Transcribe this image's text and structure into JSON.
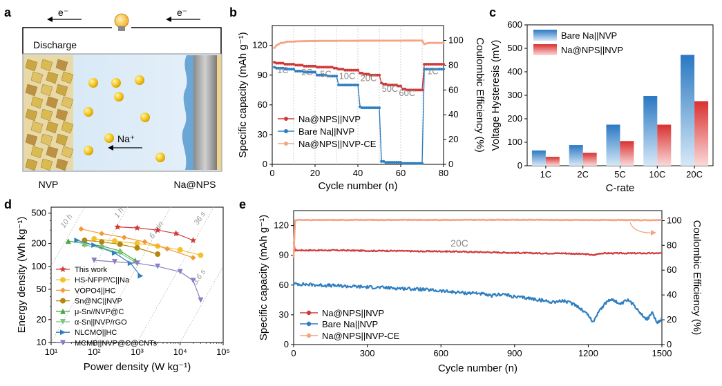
{
  "panel_labels": [
    "a",
    "b",
    "c",
    "d",
    "e"
  ],
  "panel_a": {
    "electron_left": "e⁻",
    "electron_right": "e⁻",
    "discharge_label": "Discharge",
    "ion_label": "Na⁺",
    "left_electrode_label": "NVP",
    "right_electrode_label": "Na@NPS",
    "icons": [
      "light-bulb-icon",
      "crystal-structure-icon",
      "sodium-ion-icon"
    ]
  },
  "chart_data": [
    {
      "panel": "b",
      "type": "line",
      "xlabel": "Cycle number (n)",
      "ylabel": "Specific capacity (mAh g⁻¹)",
      "y2label": "Coulombic Efficiency (%)",
      "xlim": [
        0,
        80
      ],
      "ylim": [
        0,
        140
      ],
      "y2lim": [
        0,
        112
      ],
      "xticks": [
        0,
        20,
        40,
        60,
        80
      ],
      "yticks": [
        0,
        30,
        60,
        90,
        120
      ],
      "y2ticks": [
        0,
        20,
        40,
        60,
        80,
        100
      ],
      "rate_labels": [
        "1C",
        "2C",
        "5C",
        "10C",
        "20C",
        "50C",
        "60C",
        "1C"
      ],
      "legend": [
        "Na@NPS||NVP",
        "Bare Na||NVP",
        "Na@NPS||NVP-CE"
      ],
      "series": [
        {
          "name": "Na@NPS||NVP",
          "color": "#d03a3a",
          "axis": "left",
          "x": [
            1,
            2,
            3,
            4,
            5,
            6,
            7,
            8,
            9,
            10,
            11,
            12,
            13,
            14,
            15,
            16,
            17,
            18,
            19,
            20,
            21,
            22,
            23,
            24,
            25,
            26,
            27,
            28,
            29,
            30,
            31,
            32,
            33,
            34,
            35,
            36,
            37,
            38,
            39,
            40,
            41,
            42,
            43,
            44,
            45,
            46,
            47,
            48,
            49,
            50,
            51,
            52,
            53,
            54,
            55,
            56,
            57,
            58,
            59,
            60,
            61,
            62,
            63,
            64,
            65,
            66,
            67,
            68,
            69,
            70,
            71,
            72,
            73,
            74,
            75,
            76,
            77,
            78,
            79,
            80
          ],
          "y": [
            103,
            102,
            102,
            102,
            102,
            101,
            101,
            101,
            101,
            101,
            100,
            100,
            100,
            100,
            99,
            99,
            99,
            99,
            99,
            99,
            98,
            98,
            98,
            98,
            98,
            98,
            98,
            98,
            97,
            97,
            96,
            96,
            96,
            95,
            95,
            95,
            95,
            95,
            95,
            95,
            92,
            92,
            91,
            91,
            91,
            90,
            90,
            90,
            90,
            90,
            82,
            81,
            81,
            80,
            80,
            80,
            80,
            80,
            79,
            79,
            76,
            76,
            75,
            75,
            75,
            75,
            75,
            75,
            75,
            75,
            101,
            101,
            101,
            101,
            101,
            101,
            101,
            101,
            101,
            101
          ]
        },
        {
          "name": "Bare Na||NVP",
          "color": "#2f7fc0",
          "axis": "left",
          "x": [
            1,
            2,
            3,
            4,
            5,
            6,
            7,
            8,
            9,
            10,
            11,
            12,
            13,
            14,
            15,
            16,
            17,
            18,
            19,
            20,
            21,
            22,
            23,
            24,
            25,
            26,
            27,
            28,
            29,
            30,
            31,
            32,
            33,
            34,
            35,
            36,
            37,
            38,
            39,
            40,
            41,
            42,
            43,
            44,
            45,
            46,
            47,
            48,
            49,
            50,
            51,
            52,
            53,
            54,
            55,
            56,
            57,
            58,
            59,
            60,
            61,
            62,
            63,
            64,
            65,
            66,
            67,
            68,
            69,
            70,
            71,
            72,
            73,
            74,
            75,
            76,
            77,
            78,
            79,
            80
          ],
          "y": [
            98,
            97,
            97,
            97,
            97,
            96,
            96,
            96,
            96,
            96,
            94,
            94,
            94,
            94,
            93,
            93,
            93,
            93,
            93,
            93,
            90,
            90,
            90,
            90,
            90,
            89,
            89,
            89,
            89,
            89,
            80,
            80,
            80,
            80,
            80,
            80,
            80,
            80,
            80,
            80,
            58,
            57,
            57,
            57,
            57,
            57,
            57,
            57,
            57,
            57,
            3,
            3,
            2,
            2,
            2,
            2,
            2,
            2,
            2,
            2,
            1,
            1,
            1,
            1,
            1,
            1,
            1,
            1,
            1,
            1,
            96,
            96,
            96,
            96,
            96,
            96,
            96,
            96,
            96,
            96
          ]
        },
        {
          "name": "Na@NPS||NVP-CE",
          "color": "#f4a582",
          "axis": "right",
          "x": [
            1,
            2,
            3,
            4,
            5,
            6,
            7,
            8,
            9,
            10,
            11,
            12,
            13,
            14,
            15,
            16,
            17,
            18,
            19,
            20,
            21,
            22,
            23,
            24,
            25,
            26,
            27,
            28,
            29,
            30,
            31,
            32,
            33,
            34,
            35,
            36,
            37,
            38,
            39,
            40,
            41,
            42,
            43,
            44,
            45,
            46,
            47,
            48,
            49,
            50,
            51,
            52,
            53,
            54,
            55,
            56,
            57,
            58,
            59,
            60,
            61,
            62,
            63,
            64,
            65,
            66,
            67,
            68,
            69,
            70,
            71,
            72,
            73,
            74,
            75,
            76,
            77,
            78,
            79,
            80
          ],
          "y": [
            94,
            96,
            97,
            98,
            98,
            98.5,
            99,
            99,
            99,
            99,
            99.2,
            99.3,
            99.3,
            99.4,
            99.4,
            99.4,
            99.5,
            99.5,
            99.5,
            99.5,
            99.5,
            99.6,
            99.6,
            99.6,
            99.6,
            99.6,
            99.6,
            99.6,
            99.6,
            99.6,
            99.7,
            99.7,
            99.7,
            99.7,
            99.7,
            99.7,
            99.7,
            99.7,
            99.7,
            99.7,
            99.8,
            99.8,
            99.8,
            99.8,
            99.8,
            99.8,
            99.8,
            99.8,
            99.8,
            99.8,
            99.8,
            99.8,
            99.8,
            99.8,
            99.8,
            99.8,
            99.8,
            99.8,
            99.8,
            99.8,
            99.9,
            99.9,
            99.9,
            99.9,
            99.9,
            99.9,
            99.9,
            99.9,
            99.9,
            99.9,
            97,
            97.5,
            98,
            98,
            98,
            98,
            98,
            98,
            98,
            98
          ]
        }
      ]
    },
    {
      "panel": "c",
      "type": "bar",
      "xlabel": "C-rate",
      "ylabel": "Voltage Hysteresis (mV)",
      "ylim": [
        0,
        600
      ],
      "yticks": [
        0,
        100,
        200,
        300,
        400,
        500,
        600
      ],
      "categories": [
        "1C",
        "2C",
        "5C",
        "10C",
        "20C"
      ],
      "series": [
        {
          "name": "Bare Na||NVP",
          "color": "#2f7fc0",
          "values": [
            65,
            88,
            175,
            297,
            472
          ]
        },
        {
          "name": "Na@NPS||NVP",
          "color": "#d93838",
          "values": [
            38,
            55,
            105,
            175,
            275
          ]
        }
      ]
    },
    {
      "panel": "d",
      "type": "line",
      "xlabel": "Power density (W kg⁻¹)",
      "ylabel": "Energy density (Wh kg⁻¹)",
      "xscale": "log",
      "yscale": "log",
      "xlim": [
        10,
        100000
      ],
      "ylim": [
        10,
        600
      ],
      "xtick_labels": [
        "10¹",
        "10²",
        "10³",
        "10⁴",
        "10⁵"
      ],
      "ytick_values": [
        10,
        20,
        50,
        100,
        200,
        500
      ],
      "time_lines": [
        "10 h",
        "1 h",
        "6 min",
        "36 s",
        "3.6 s"
      ],
      "series": [
        {
          "name": "This work",
          "color": "#d03a3a",
          "marker": "star",
          "x": [
            350,
            1000,
            3000,
            8000,
            20000
          ],
          "y": [
            330,
            320,
            300,
            270,
            220
          ]
        },
        {
          "name": "HS-NFPP/C||Na",
          "color": "#f2c12e",
          "marker": "circle",
          "x": [
            100,
            300,
            1000,
            3000,
            10000,
            30000
          ],
          "y": [
            230,
            215,
            200,
            185,
            165,
            140
          ]
        },
        {
          "name": "VOPO4||HC",
          "color": "#f29a3b",
          "marker": "diamond",
          "x": [
            50,
            150,
            500,
            1500,
            5000,
            20000
          ],
          "y": [
            310,
            270,
            240,
            210,
            170,
            130
          ]
        },
        {
          "name": "Sn@NC||NVP",
          "color": "#b8860b",
          "marker": "circle",
          "x": [
            60,
            150,
            400,
            1000,
            3000
          ],
          "y": [
            220,
            210,
            195,
            175,
            145
          ]
        },
        {
          "name": "μ-Sn//NVP@C",
          "color": "#4aa84a",
          "marker": "triangle-up",
          "x": [
            25,
            60,
            150,
            400,
            900
          ],
          "y": [
            215,
            200,
            185,
            160,
            120
          ]
        },
        {
          "name": "α-Sn||NVP/rGO",
          "color": "#7ac67a",
          "marker": "triangle-down",
          "x": [
            60,
            150,
            400,
            1000
          ],
          "y": [
            190,
            175,
            150,
            110
          ]
        },
        {
          "name": "NLCMO||HC",
          "color": "#2f7fc0",
          "marker": "triangle-right",
          "x": [
            40,
            100,
            300,
            700,
            1200
          ],
          "y": [
            220,
            190,
            150,
            110,
            75
          ]
        },
        {
          "name": "MCMB||NVP@C@CNTs",
          "color": "#8a7fc4",
          "marker": "triangle-down",
          "x": [
            100,
            300,
            1000,
            3000,
            10000,
            20000,
            30000
          ],
          "y": [
            120,
            115,
            110,
            100,
            85,
            65,
            36
          ]
        }
      ]
    },
    {
      "panel": "e",
      "type": "line",
      "xlabel": "Cycle number (n)",
      "ylabel": "Specific capacity (mAh g⁻¹)",
      "y2label": "Coulombic Efficiency (%)",
      "xlim": [
        0,
        1500
      ],
      "ylim": [
        0,
        135
      ],
      "y2lim": [
        0,
        108
      ],
      "xticks": [
        0,
        300,
        600,
        900,
        1200,
        1500
      ],
      "yticks": [
        0,
        30,
        60,
        90,
        120
      ],
      "y2ticks": [
        0,
        20,
        40,
        60,
        80,
        100
      ],
      "annotation": "20C",
      "legend": [
        "Na@NPS||NVP",
        "Bare Na||NVP",
        "Na@NPS||NVP-CE"
      ],
      "series": [
        {
          "name": "Na@NPS||NVP",
          "color": "#d03a3a",
          "axis": "left",
          "x": [
            0,
            5,
            10,
            100,
            200,
            300,
            400,
            500,
            600,
            700,
            800,
            900,
            1000,
            1100,
            1200,
            1220,
            1250,
            1300,
            1400,
            1500
          ],
          "y": [
            103,
            95,
            95,
            95,
            95,
            94.5,
            94.5,
            94,
            94,
            93.5,
            93,
            92.5,
            92,
            92,
            91,
            90,
            92,
            92,
            92,
            92
          ]
        },
        {
          "name": "Bare Na||NVP",
          "color": "#2f7fc0",
          "axis": "left",
          "x": [
            0,
            5,
            20,
            100,
            200,
            300,
            400,
            500,
            550,
            600,
            650,
            700,
            750,
            800,
            850,
            900,
            950,
            1000,
            1050,
            1100,
            1150,
            1200,
            1220,
            1240,
            1280,
            1300,
            1330,
            1360,
            1390,
            1420,
            1440,
            1460,
            1480,
            1500
          ],
          "y": [
            61,
            61,
            61,
            60,
            59,
            58,
            57,
            56,
            55,
            54,
            53,
            52,
            52,
            49,
            51,
            48,
            47,
            45,
            43,
            44,
            40,
            30,
            22,
            33,
            44,
            46,
            40,
            45,
            39,
            30,
            25,
            33,
            21,
            26
          ]
        },
        {
          "name": "Na@NPS||NVP-CE",
          "color": "#f4a582",
          "axis": "right",
          "x": [
            0,
            5,
            10,
            100,
            300,
            600,
            900,
            1200,
            1500
          ],
          "y": [
            70,
            100,
            100.5,
            100.4,
            100.5,
            100.5,
            100.6,
            100.4,
            100.3
          ]
        }
      ]
    }
  ]
}
